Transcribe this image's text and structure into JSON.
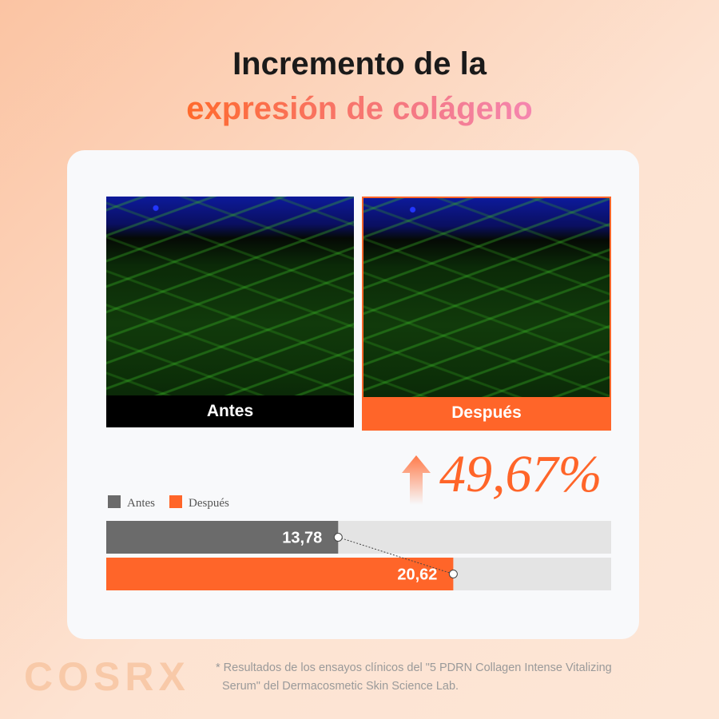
{
  "header": {
    "title_line1": "Incremento de la",
    "title_line2": "expresión de colágeno"
  },
  "images": {
    "before_label": "Antes",
    "after_label": "Después"
  },
  "increase_label": "49,67%",
  "chart_data": {
    "type": "bar",
    "orientation": "horizontal",
    "categories": [
      "Antes",
      "Después"
    ],
    "values": [
      13.78,
      20.62
    ],
    "value_labels": [
      "13,78",
      "20,62"
    ],
    "colors": [
      "#6b6b6b",
      "#ff6529"
    ],
    "xlim": [
      0,
      30
    ]
  },
  "footer": {
    "brand": "COSRX",
    "note_line1": "* Resultados de los ensayos clínicos del \"5 PDRN Collagen Intense Vitalizing",
    "note_line2": "Serum\" del Dermacosmetic Skin Science Lab."
  }
}
